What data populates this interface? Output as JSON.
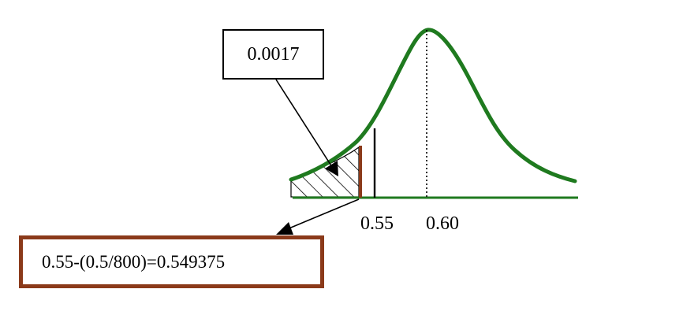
{
  "probability_box": {
    "text": "0.0017"
  },
  "formula_box": {
    "text": "0.55-(0.5/800)=0.549375"
  },
  "axis": {
    "tick_labels": [
      "0.55",
      "0.60"
    ]
  },
  "colors": {
    "curve": "#1f7a1f",
    "axis_line": "#1f7a1f",
    "cutoff_line": "#8b3a1a",
    "formula_border": "#8b3a1a",
    "text": "#000000"
  }
}
